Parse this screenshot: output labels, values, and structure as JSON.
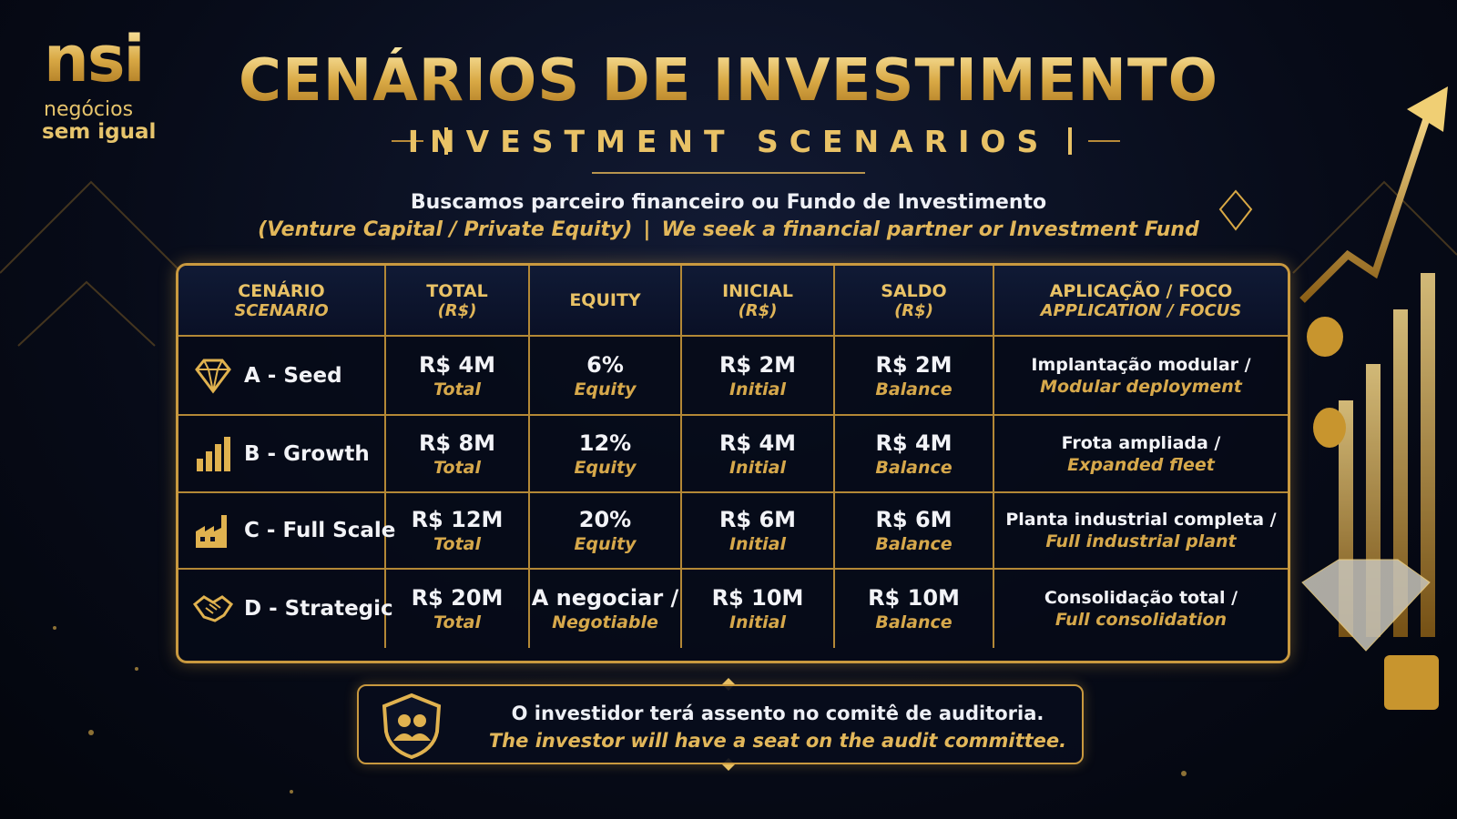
{
  "logo": {
    "mark": "nsi",
    "line1": "negócios",
    "line2": "sem igual"
  },
  "header": {
    "title": "CENÁRIOS DE INVESTIMENTO",
    "subtitle": "INVESTMENT SCENARIOS"
  },
  "intro": {
    "pt": "Buscamos parceiro financeiro ou Fundo de Investimento",
    "en_a": "(Venture Capital / Private Equity)",
    "separator": "|",
    "en_b": "We seek a financial partner or Investment Fund"
  },
  "table": {
    "columns": [
      {
        "pt": "CENÁRIO",
        "en": "SCENARIO"
      },
      {
        "pt": "TOTAL",
        "en": "(R$)"
      },
      {
        "pt": "EQUITY"
      },
      {
        "pt": "INICIAL",
        "en": "(R$)"
      },
      {
        "pt": "SALDO",
        "en": "(R$)"
      },
      {
        "pt": "APLICAÇÃO / FOCO",
        "en": "APPLICATION / FOCUS"
      }
    ],
    "rows": [
      {
        "scenario": "A - Seed",
        "cells": [
          {
            "main": "R$ 4M",
            "sub": "Total"
          },
          {
            "main": "6%",
            "sub": "Equity"
          },
          {
            "main": "R$ 2M",
            "sub": "Initial"
          },
          {
            "main": "R$ 2M",
            "sub": "Balance"
          },
          {
            "main": "Implantação modular /",
            "sub": "Modular deployment"
          }
        ]
      },
      {
        "scenario": "B - Growth",
        "cells": [
          {
            "main": "R$ 8M",
            "sub": "Total"
          },
          {
            "main": "12%",
            "sub": "Equity"
          },
          {
            "main": "R$ 4M",
            "sub": "Initial"
          },
          {
            "main": "R$ 4M",
            "sub": "Balance"
          },
          {
            "main": "Frota ampliada /",
            "sub": "Expanded fleet"
          }
        ]
      },
      {
        "scenario": "C - Full Scale",
        "cells": [
          {
            "main": "R$ 12M",
            "sub": "Total"
          },
          {
            "main": "20%",
            "sub": "Equity"
          },
          {
            "main": "R$ 6M",
            "sub": "Initial"
          },
          {
            "main": "R$ 6M",
            "sub": "Balance"
          },
          {
            "main": "Planta industrial completa /",
            "sub": "Full industrial plant"
          }
        ]
      },
      {
        "scenario": "D - Strategic",
        "cells": [
          {
            "main": "R$ 20M",
            "sub": "Total"
          },
          {
            "main": "A negociar /",
            "sub": "Negotiable"
          },
          {
            "main": "R$ 10M",
            "sub": "Initial"
          },
          {
            "main": "R$ 10M",
            "sub": "Balance"
          },
          {
            "main": "Consolidação total /",
            "sub": "Full consolidation"
          }
        ]
      }
    ]
  },
  "note": {
    "pt": "O investidor terá assento no comitê de auditoria.",
    "en": "The investor will have a seat on the audit committee."
  }
}
